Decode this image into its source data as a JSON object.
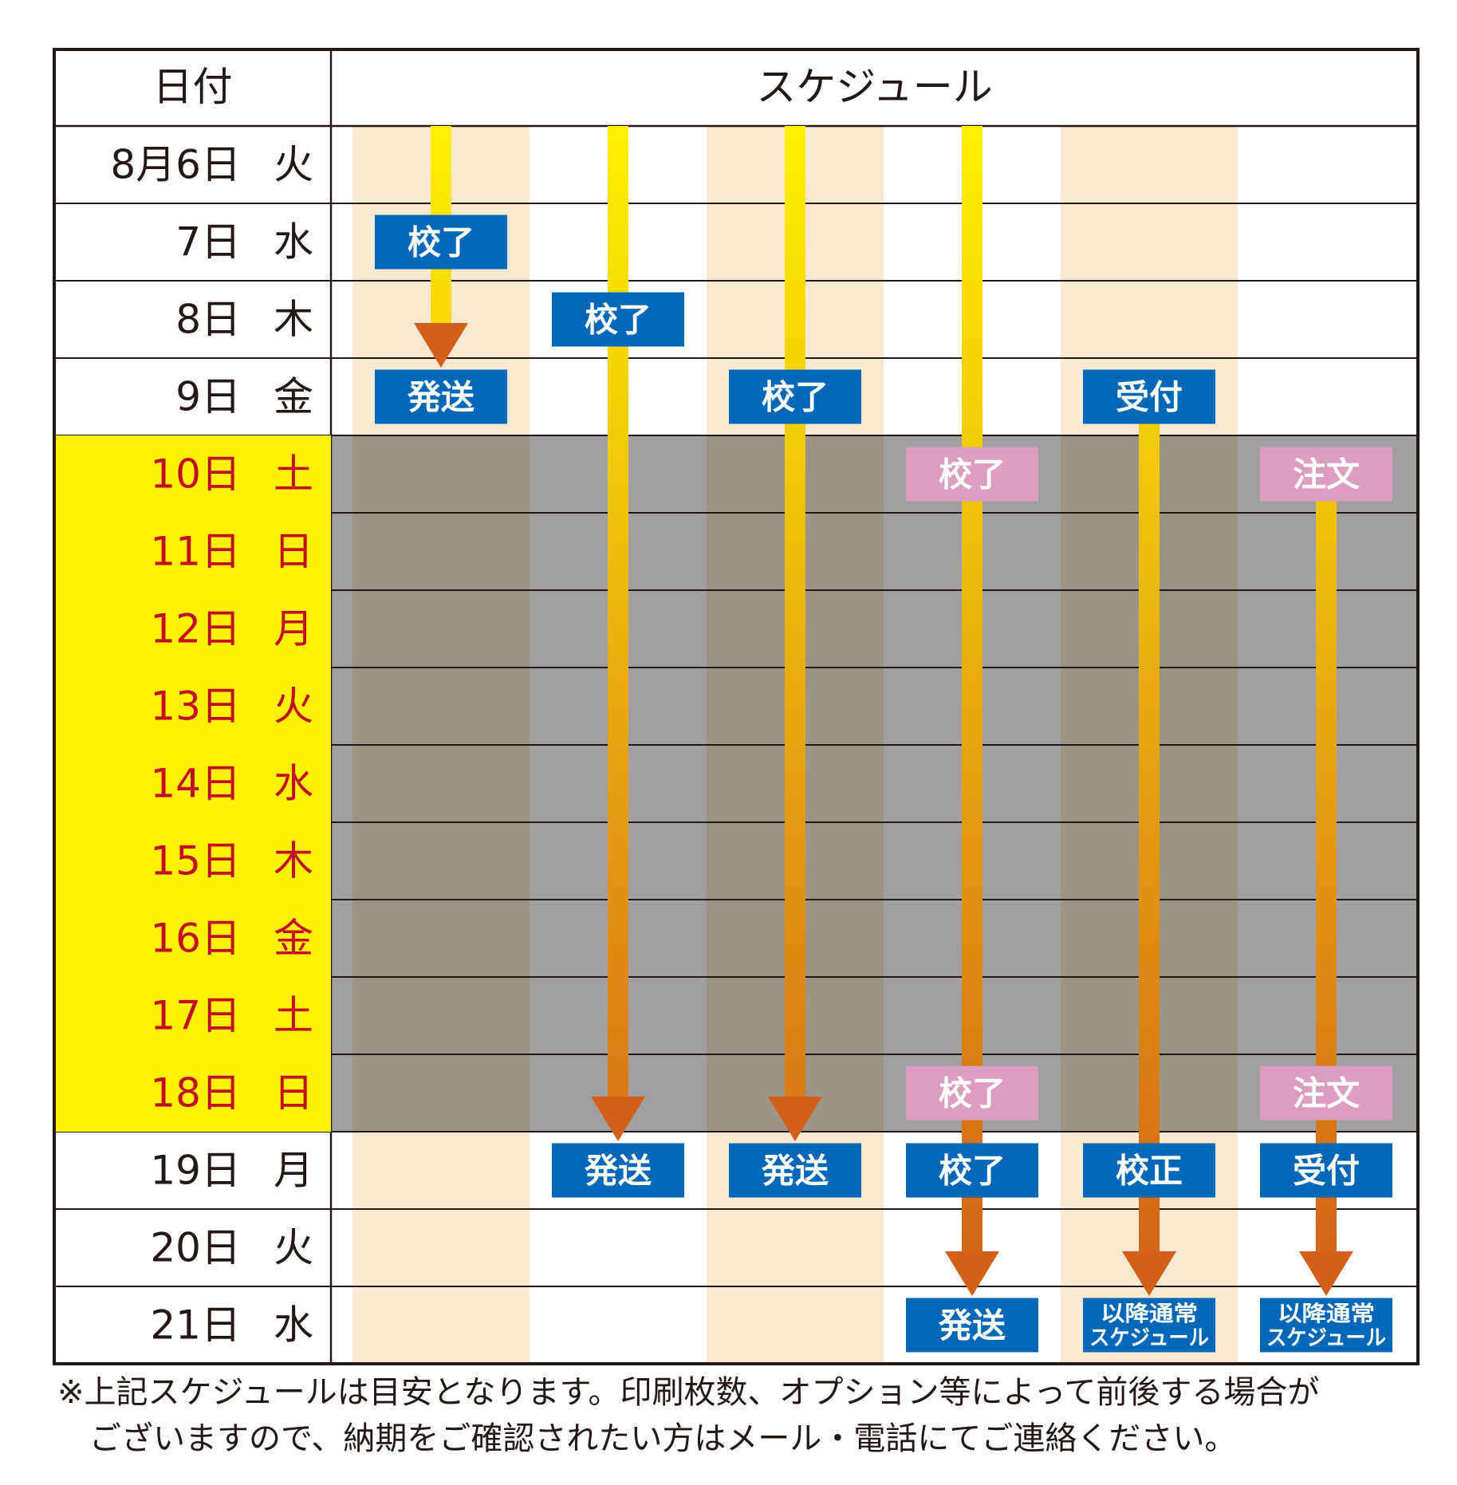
{
  "header": {
    "date_col": "日付",
    "schedule_col": "スケジュール"
  },
  "rows": [
    {
      "date": "8月6日",
      "weekday": "火",
      "holiday": false
    },
    {
      "date": "7日",
      "weekday": "水",
      "holiday": false
    },
    {
      "date": "8日",
      "weekday": "木",
      "holiday": false
    },
    {
      "date": "9日",
      "weekday": "金",
      "holiday": false
    },
    {
      "date": "10日",
      "weekday": "土",
      "holiday": true
    },
    {
      "date": "11日",
      "weekday": "日",
      "holiday": true
    },
    {
      "date": "12日",
      "weekday": "月",
      "holiday": true
    },
    {
      "date": "13日",
      "weekday": "火",
      "holiday": true
    },
    {
      "date": "14日",
      "weekday": "水",
      "holiday": true
    },
    {
      "date": "15日",
      "weekday": "木",
      "holiday": true
    },
    {
      "date": "16日",
      "weekday": "金",
      "holiday": true
    },
    {
      "date": "17日",
      "weekday": "土",
      "holiday": true
    },
    {
      "date": "18日",
      "weekday": "日",
      "holiday": true
    },
    {
      "date": "19日",
      "weekday": "月",
      "holiday": false
    },
    {
      "date": "20日",
      "weekday": "火",
      "holiday": false
    },
    {
      "date": "21日",
      "weekday": "水",
      "holiday": false
    }
  ],
  "tracks": [
    {
      "arrow_from_row": 0,
      "arrow_to_row": 3,
      "labels": [
        {
          "row": 1,
          "text": "校了",
          "style": "blue"
        },
        {
          "row": 3,
          "text": "発送",
          "style": "blue"
        }
      ]
    },
    {
      "arrow_from_row": 0,
      "arrow_to_row": 13,
      "labels": [
        {
          "row": 2,
          "text": "校了",
          "style": "blue"
        },
        {
          "row": 13,
          "text": "発送",
          "style": "blue"
        }
      ]
    },
    {
      "arrow_from_row": 0,
      "arrow_to_row": 13,
      "labels": [
        {
          "row": 3,
          "text": "校了",
          "style": "blue"
        },
        {
          "row": 13,
          "text": "発送",
          "style": "blue"
        }
      ]
    },
    {
      "arrow_from_row": 0,
      "arrow_to_row": 15,
      "labels": [
        {
          "row": 4,
          "text": "校了",
          "style": "pink"
        },
        {
          "row": 12,
          "text": "校了",
          "style": "pink"
        },
        {
          "row": 13,
          "text": "校了",
          "style": "blue"
        },
        {
          "row": 15,
          "text": "発送",
          "style": "blue"
        }
      ]
    },
    {
      "arrow_from_row": 3,
      "arrow_to_row": 15,
      "labels": [
        {
          "row": 3,
          "text": "受付",
          "style": "blue"
        },
        {
          "row": 13,
          "text": "校正",
          "style": "blue"
        },
        {
          "row": 15,
          "text": "以降通常\nスケジュール",
          "style": "blue-small"
        }
      ]
    },
    {
      "arrow_from_row": 4,
      "arrow_to_row": 15,
      "labels": [
        {
          "row": 4,
          "text": "注文",
          "style": "pink"
        },
        {
          "row": 12,
          "text": "注文",
          "style": "pink"
        },
        {
          "row": 13,
          "text": "受付",
          "style": "blue"
        },
        {
          "row": 15,
          "text": "以降通常\nスケジュール",
          "style": "blue-small"
        }
      ]
    }
  ],
  "footnote": {
    "line1": "※上記スケジュールは目安となります。印刷枚数、オプション等によって前後する場合が",
    "line2": "ございますので、納期をご確認されたい方はメール・電話にてご連絡ください。"
  },
  "colors": {
    "border": "#231815",
    "holiday_date_bg": "#fff100",
    "holiday_date_text": "#c30d23",
    "normal_date_text": "#231815",
    "stripe_beige": "#f7e8d2",
    "stripe_dark_holiday": "#9c9484",
    "stripe_gray_holiday": "#a0a0a0",
    "arrow_top": "#fff100",
    "arrow_bottom": "#d2601a",
    "label_blue": "#0068b7",
    "label_pink": "#dc9ec0",
    "label_text": "#ffffff"
  }
}
